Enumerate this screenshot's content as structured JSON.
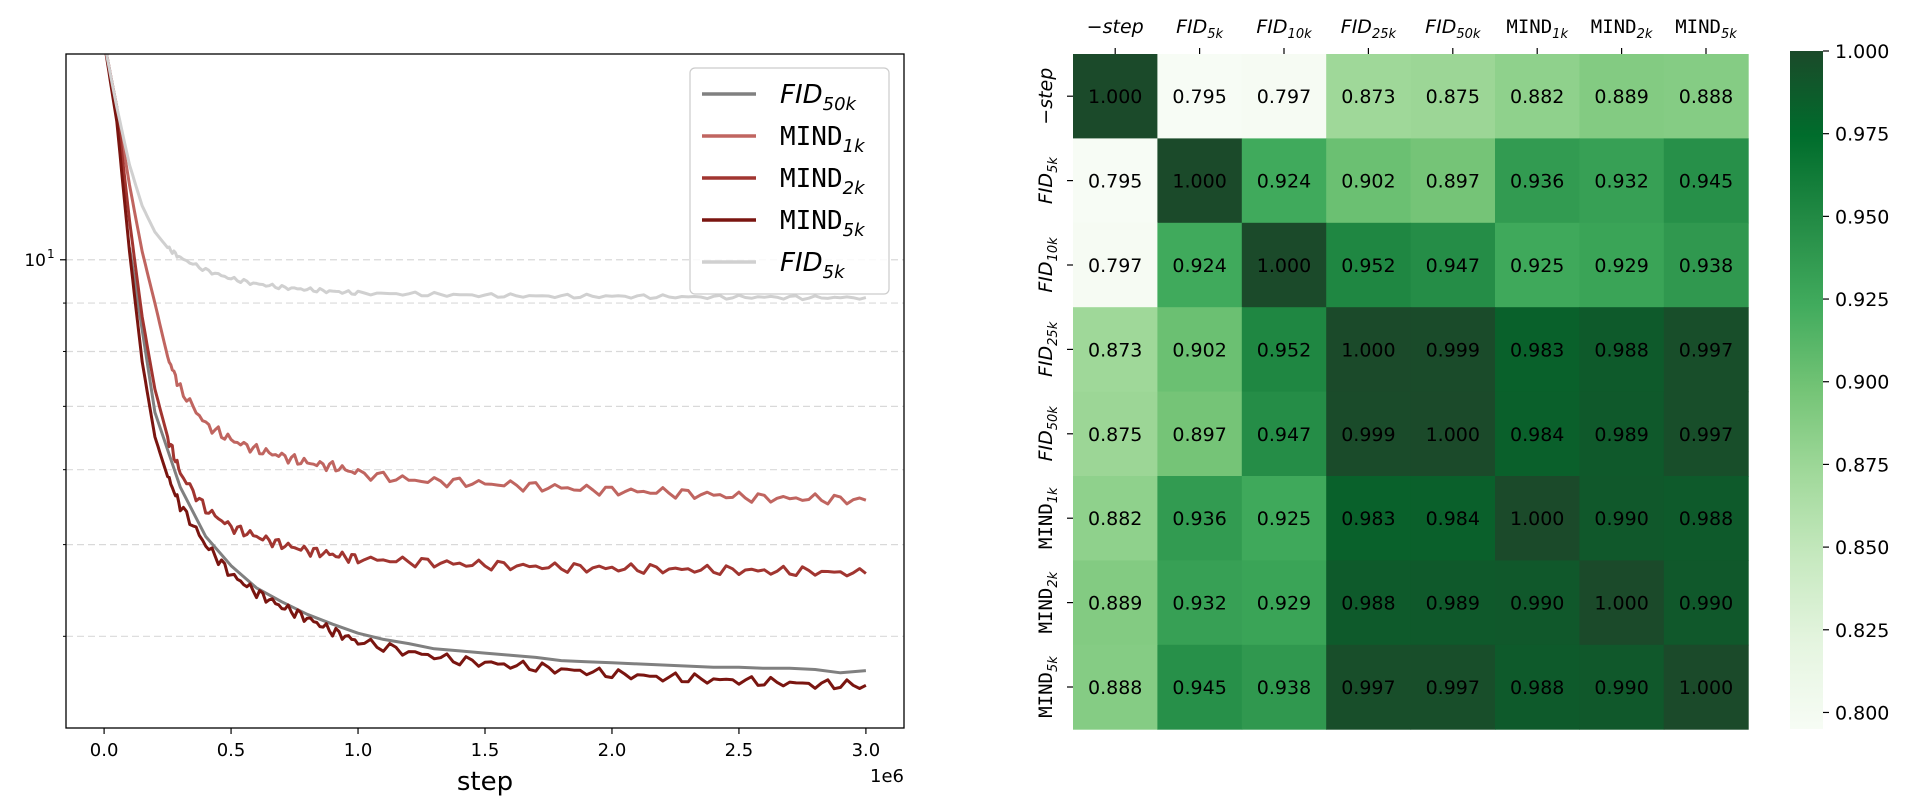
{
  "chart_data": [
    {
      "type": "line",
      "xlabel": "step",
      "ylabel": "",
      "x_offset_label": "1e6",
      "y_scale": "log",
      "xlim": [
        -150000,
        3150000
      ],
      "ylim": [
        3.2,
        16.5
      ],
      "x_ticks": [
        0,
        500000,
        1000000,
        1500000,
        2000000,
        2500000,
        3000000
      ],
      "x_tick_labels": [
        "0.0",
        "0.5",
        "1.0",
        "1.5",
        "2.0",
        "2.5",
        "3.0"
      ],
      "y_ticks": [
        10
      ],
      "y_tick_labels": [
        "10"
      ],
      "y_tick_exponent": "1",
      "grid": "horizontal dashed",
      "legend_position": "upper right",
      "series": [
        {
          "key": "fid50k",
          "name_base": "FID",
          "name_sub": "50k",
          "mono": false,
          "color": "#808080",
          "x": [
            100000,
            200000,
            300000,
            400000,
            500000,
            600000,
            700000,
            800000,
            900000,
            1000000,
            1100000,
            1200000,
            1300000,
            1400000,
            1500000,
            1600000,
            1700000,
            1800000,
            1900000,
            2000000,
            2100000,
            2200000,
            2300000,
            2400000,
            2500000,
            2600000,
            2700000,
            2800000,
            2900000,
            3000000
          ],
          "y": [
            10.3,
            6.9,
            5.75,
            5.1,
            4.75,
            4.5,
            4.35,
            4.22,
            4.12,
            4.03,
            3.97,
            3.93,
            3.88,
            3.86,
            3.84,
            3.82,
            3.8,
            3.77,
            3.76,
            3.75,
            3.74,
            3.73,
            3.72,
            3.71,
            3.71,
            3.7,
            3.7,
            3.69,
            3.66,
            3.68
          ]
        },
        {
          "key": "mind1k",
          "name_base": "MIND",
          "name_sub": "1k",
          "mono": true,
          "color": "#c06560",
          "x": [
            0,
            50000,
            100000,
            150000,
            200000,
            250000,
            300000,
            400000,
            500000,
            600000,
            700000,
            800000,
            900000,
            1000000,
            1200000,
            1400000,
            1600000,
            1800000,
            2000000,
            2200000,
            2400000,
            2600000,
            2800000,
            3000000
          ],
          "y": [
            17,
            14.5,
            12.0,
            10.2,
            9.0,
            7.9,
            7.3,
            6.7,
            6.45,
            6.3,
            6.2,
            6.1,
            6.05,
            5.95,
            5.85,
            5.82,
            5.78,
            5.74,
            5.7,
            5.68,
            5.64,
            5.6,
            5.59,
            5.57
          ]
        },
        {
          "key": "mind2k",
          "name_base": "MIND",
          "name_sub": "2k",
          "mono": true,
          "color": "#a13530",
          "x": [
            0,
            50000,
            100000,
            150000,
            200000,
            250000,
            300000,
            400000,
            500000,
            600000,
            700000,
            800000,
            900000,
            1000000,
            1200000,
            1400000,
            1600000,
            1800000,
            2000000,
            2200000,
            2400000,
            2600000,
            2800000,
            3000000
          ],
          "y": [
            17,
            14.5,
            11.0,
            8.7,
            7.3,
            6.5,
            5.95,
            5.45,
            5.22,
            5.1,
            5.0,
            4.93,
            4.88,
            4.83,
            4.8,
            4.77,
            4.75,
            4.73,
            4.72,
            4.71,
            4.7,
            4.69,
            4.68,
            4.66
          ]
        },
        {
          "key": "mind5k",
          "name_base": "MIND",
          "name_sub": "5k",
          "mono": true,
          "color": "#7a1510",
          "x": [
            0,
            50000,
            100000,
            150000,
            200000,
            250000,
            300000,
            400000,
            500000,
            600000,
            700000,
            800000,
            900000,
            1000000,
            1200000,
            1400000,
            1600000,
            1800000,
            2000000,
            2200000,
            2400000,
            2600000,
            2800000,
            3000000
          ],
          "y": [
            17,
            14.0,
            10.2,
            7.8,
            6.5,
            5.9,
            5.5,
            5.0,
            4.65,
            4.45,
            4.3,
            4.18,
            4.05,
            3.95,
            3.85,
            3.77,
            3.73,
            3.69,
            3.65,
            3.62,
            3.6,
            3.58,
            3.56,
            3.55
          ]
        },
        {
          "key": "fid5k",
          "name_base": "FID",
          "name_sub": "5k",
          "mono": false,
          "color": "#d0d0d0",
          "x": [
            0,
            50000,
            100000,
            150000,
            200000,
            250000,
            300000,
            400000,
            500000,
            600000,
            700000,
            800000,
            900000,
            1000000,
            1200000,
            1400000,
            1600000,
            1800000,
            2000000,
            2200000,
            2400000,
            2600000,
            2800000,
            3000000
          ],
          "y": [
            17,
            14.5,
            12.6,
            11.4,
            10.7,
            10.3,
            10.05,
            9.75,
            9.55,
            9.43,
            9.35,
            9.3,
            9.26,
            9.22,
            9.2,
            9.18,
            9.16,
            9.15,
            9.15,
            9.14,
            9.13,
            9.13,
            9.12,
            9.12
          ]
        }
      ]
    },
    {
      "type": "heatmap",
      "labels": [
        {
          "text": "−step",
          "sub": "",
          "mono": false
        },
        {
          "text": "FID",
          "sub": "5k",
          "mono": false
        },
        {
          "text": "FID",
          "sub": "10k",
          "mono": false
        },
        {
          "text": "FID",
          "sub": "25k",
          "mono": false
        },
        {
          "text": "FID",
          "sub": "50k",
          "mono": false
        },
        {
          "text": "MIND",
          "sub": "1k",
          "mono": true
        },
        {
          "text": "MIND",
          "sub": "2k",
          "mono": true
        },
        {
          "text": "MIND",
          "sub": "5k",
          "mono": true
        }
      ],
      "values": [
        [
          1.0,
          0.795,
          0.797,
          0.873,
          0.875,
          0.882,
          0.889,
          0.888
        ],
        [
          0.795,
          1.0,
          0.924,
          0.902,
          0.897,
          0.936,
          0.932,
          0.945
        ],
        [
          0.797,
          0.924,
          1.0,
          0.952,
          0.947,
          0.925,
          0.929,
          0.938
        ],
        [
          0.873,
          0.902,
          0.952,
          1.0,
          0.999,
          0.983,
          0.988,
          0.997
        ],
        [
          0.875,
          0.897,
          0.947,
          0.999,
          1.0,
          0.984,
          0.989,
          0.997
        ],
        [
          0.882,
          0.936,
          0.925,
          0.983,
          0.984,
          1.0,
          0.99,
          0.988
        ],
        [
          0.889,
          0.932,
          0.929,
          0.988,
          0.989,
          0.99,
          1.0,
          0.99
        ],
        [
          0.888,
          0.945,
          0.938,
          0.997,
          0.997,
          0.988,
          0.99,
          1.0
        ]
      ],
      "value_labels": [
        [
          "1.000",
          "0.795",
          "0.797",
          "0.873",
          "0.875",
          "0.882",
          "0.889",
          "0.888"
        ],
        [
          "0.795",
          "1.000",
          "0.924",
          "0.902",
          "0.897",
          "0.936",
          "0.932",
          "0.945"
        ],
        [
          "0.797",
          "0.924",
          "1.000",
          "0.952",
          "0.947",
          "0.925",
          "0.929",
          "0.938"
        ],
        [
          "0.873",
          "0.902",
          "0.952",
          "1.000",
          "0.999",
          "0.983",
          "0.988",
          "0.997"
        ],
        [
          "0.875",
          "0.897",
          "0.947",
          "0.999",
          "1.000",
          "0.984",
          "0.989",
          "0.997"
        ],
        [
          "0.882",
          "0.936",
          "0.925",
          "0.983",
          "0.984",
          "1.000",
          "0.990",
          "0.988"
        ],
        [
          "0.889",
          "0.932",
          "0.929",
          "0.988",
          "0.989",
          "0.990",
          "1.000",
          "0.990"
        ],
        [
          "0.888",
          "0.945",
          "0.938",
          "0.997",
          "0.997",
          "0.988",
          "0.990",
          "1.000"
        ]
      ],
      "colorbar_range": [
        0.795,
        1.0
      ],
      "colorbar_ticks": [
        "1.000",
        "0.975",
        "0.950",
        "0.925",
        "0.900",
        "0.875",
        "0.850",
        "0.825",
        "0.800"
      ],
      "colormap": "Greens",
      "colormap_stops": [
        "#f7fcf5",
        "#e5f5e0",
        "#c7e9c0",
        "#a1d99b",
        "#74c476",
        "#41ab5d",
        "#238b45",
        "#006d2c",
        "#1b4a2a"
      ]
    }
  ]
}
